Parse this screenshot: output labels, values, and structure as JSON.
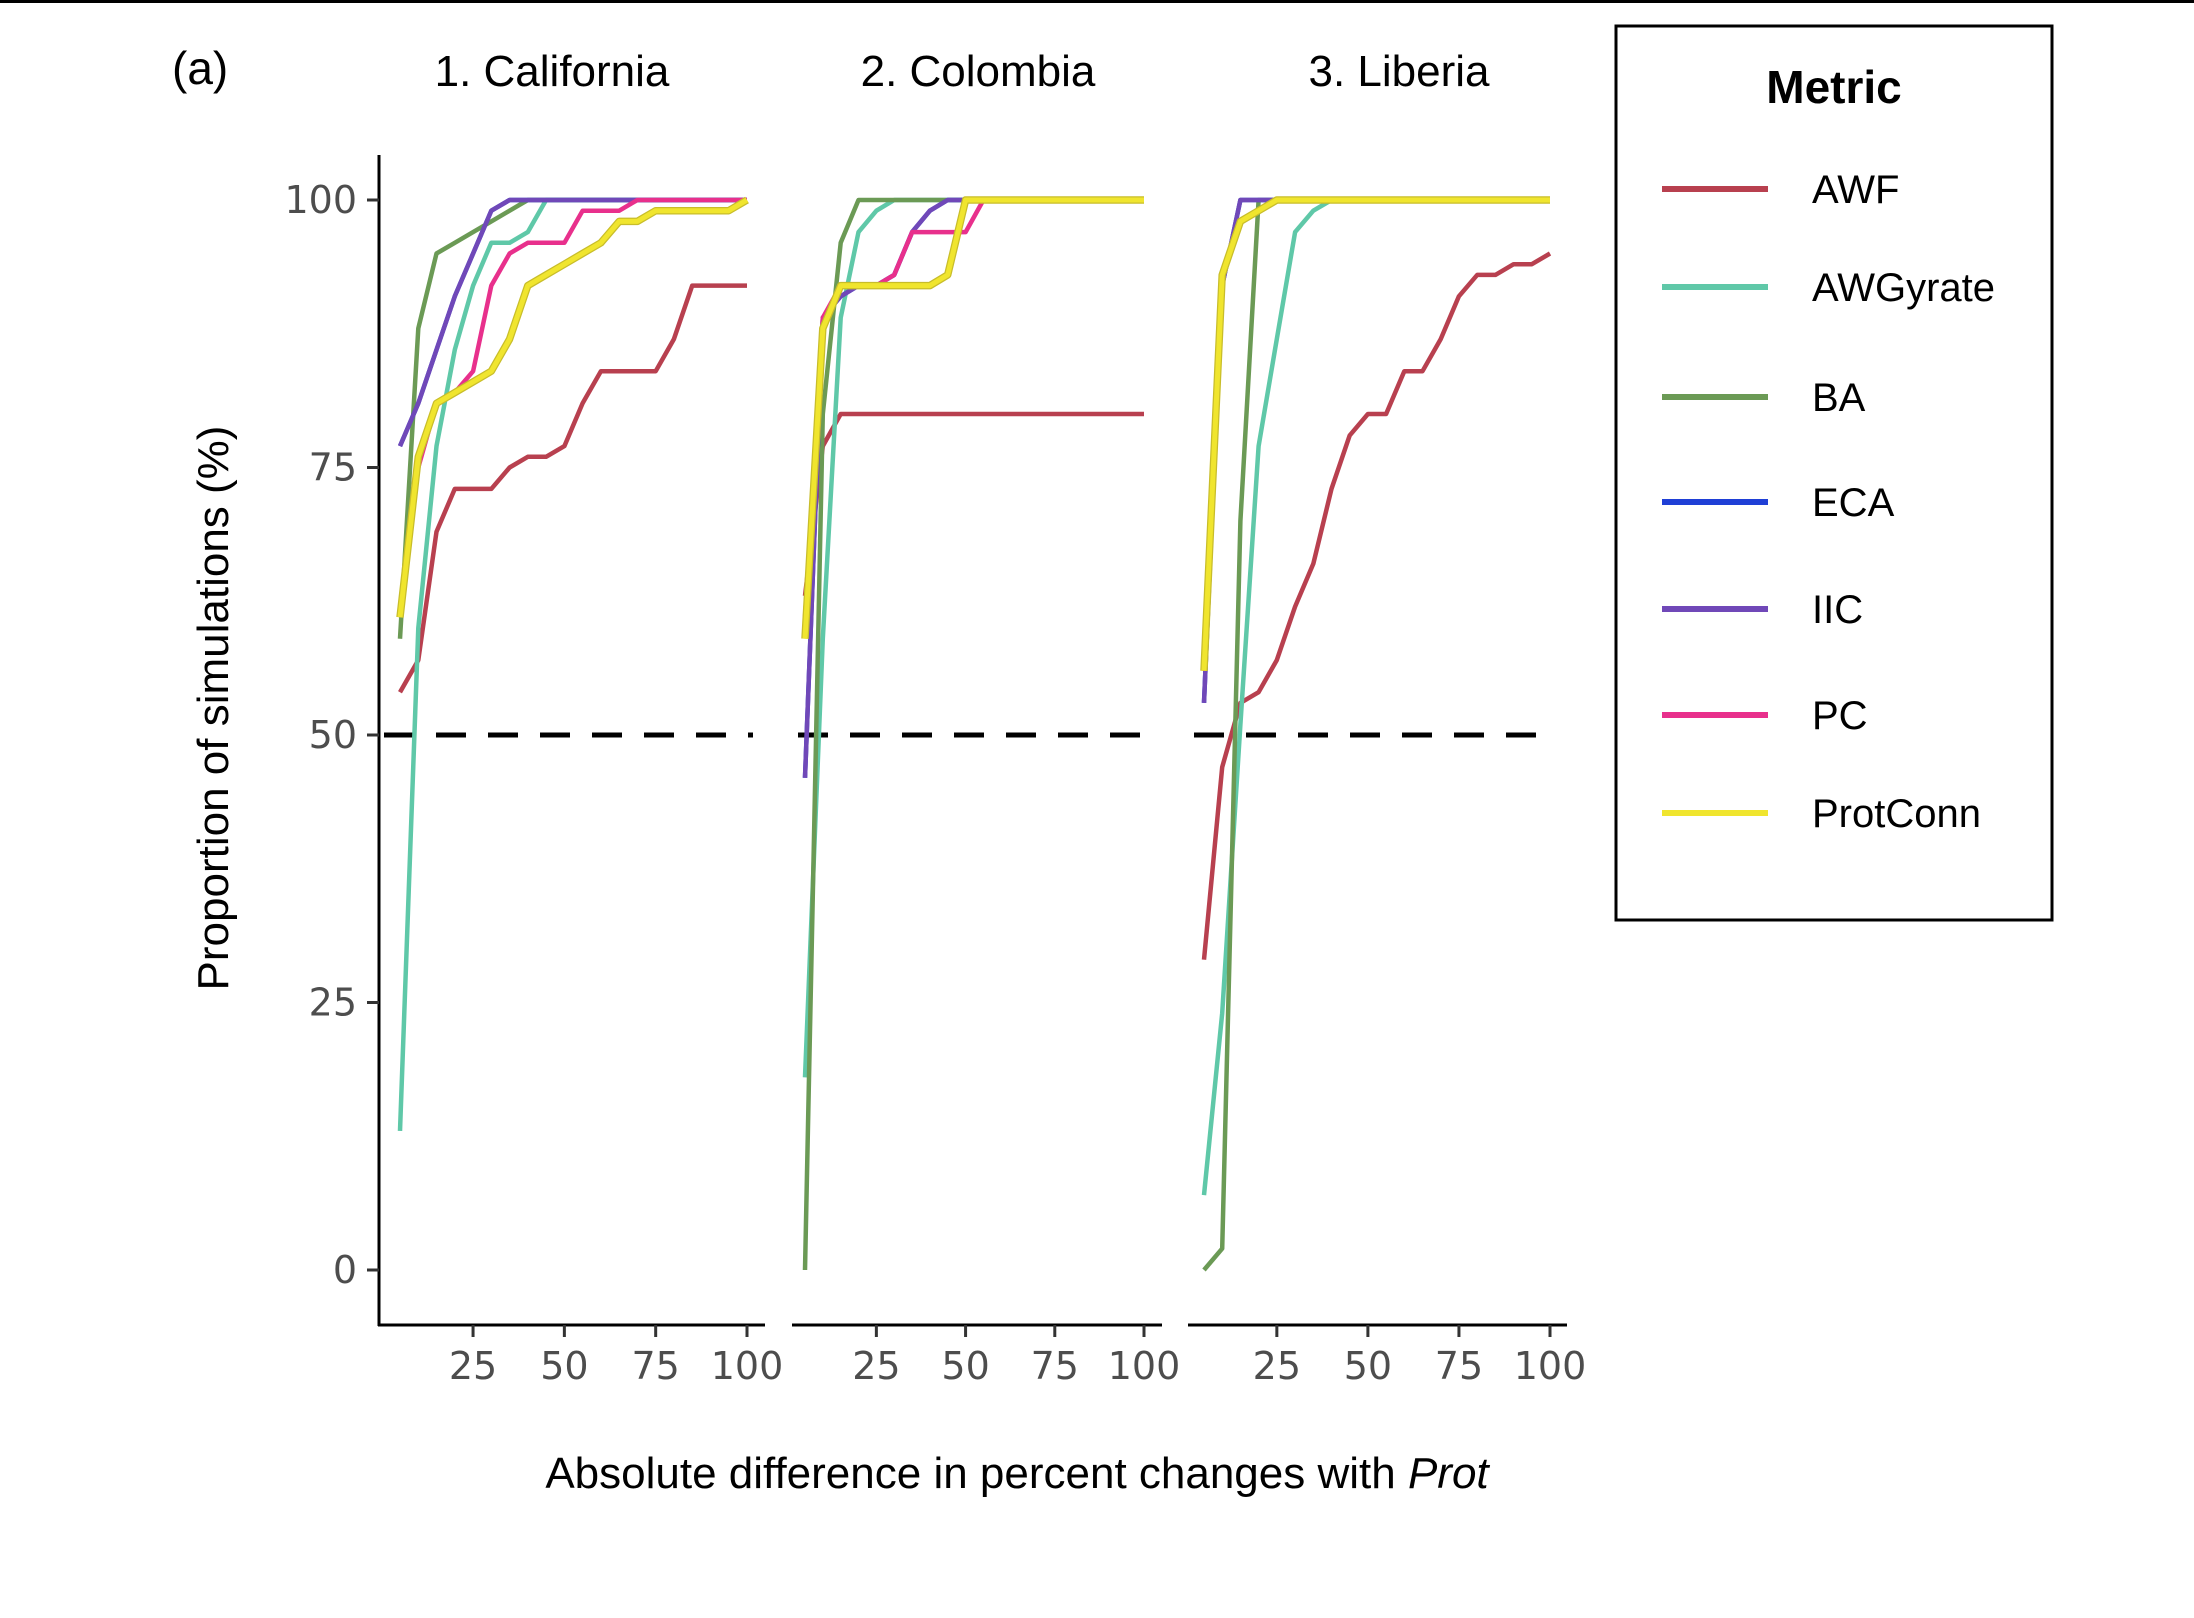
{
  "panel_label": "(a)",
  "x_label_main": "Absolute difference in percent changes with ",
  "x_label_italic": "Prot",
  "y_label": "Proportion of simulations (%)",
  "legend": {
    "title": "Metric",
    "entries": [
      {
        "name": "AWF",
        "color": "#b8404f"
      },
      {
        "name": "AWGyrate",
        "color": "#5fc8a8"
      },
      {
        "name": "BA",
        "color": "#6b9a55"
      },
      {
        "name": "ECA",
        "color": "#1f3fd6"
      },
      {
        "name": "IIC",
        "color": "#7048b8"
      },
      {
        "name": "PC",
        "color": "#e8308c"
      },
      {
        "name": "ProtConn",
        "color": "#f0e52e"
      }
    ]
  },
  "chart_data": {
    "type": "line",
    "facets": [
      "1. California",
      "2. Colombia",
      "3. Liberia"
    ],
    "xlabel": "Absolute difference in percent changes with Prot",
    "ylabel": "Proportion of simulations (%)",
    "ylim": [
      0,
      100
    ],
    "yticks": [
      0,
      25,
      50,
      75,
      100
    ],
    "xticks": [
      25,
      50,
      75,
      100
    ],
    "xlim": [
      0,
      101
    ],
    "reference_line": {
      "y": 50,
      "style": "dashed",
      "color": "#000000"
    },
    "grid": false,
    "legend_position": "right",
    "series_order": [
      "AWF",
      "AWGyrate",
      "BA",
      "ECA",
      "IIC",
      "PC",
      "ProtConn"
    ],
    "panels": [
      {
        "facet": "1. California",
        "series": [
          {
            "name": "AWF",
            "x": [
              5,
              10,
              15,
              20,
              25,
              30,
              35,
              40,
              45,
              50,
              55,
              60,
              65,
              70,
              75,
              80,
              85,
              90,
              95,
              100
            ],
            "y": [
              54,
              57,
              69,
              73,
              73,
              73,
              75,
              76,
              76,
              77,
              81,
              84,
              84,
              84,
              84,
              87,
              92,
              92,
              92,
              92
            ]
          },
          {
            "name": "AWGyrate",
            "x": [
              5,
              10,
              15,
              20,
              25,
              30,
              35,
              40,
              45,
              50,
              60,
              70,
              80,
              90,
              100
            ],
            "y": [
              13,
              60,
              77,
              86,
              92,
              96,
              96,
              97,
              100,
              100,
              100,
              100,
              100,
              100,
              100
            ]
          },
          {
            "name": "BA",
            "x": [
              5,
              10,
              15,
              20,
              25,
              30,
              35,
              40,
              50,
              60,
              70,
              80,
              90,
              100
            ],
            "y": [
              59,
              88,
              95,
              96,
              97,
              98,
              99,
              100,
              100,
              100,
              100,
              100,
              100,
              100
            ]
          },
          {
            "name": "ECA",
            "x": [
              5,
              10,
              15,
              20,
              25,
              30,
              35,
              40,
              50,
              60,
              70,
              80,
              90,
              100
            ],
            "y": [
              77,
              81,
              86,
              91,
              95,
              99,
              100,
              100,
              100,
              100,
              100,
              100,
              100,
              100
            ]
          },
          {
            "name": "IIC",
            "x": [
              5,
              10,
              15,
              20,
              25,
              30,
              35,
              40,
              50,
              60,
              70,
              80,
              90,
              100
            ],
            "y": [
              77,
              81,
              86,
              91,
              95,
              99,
              100,
              100,
              100,
              100,
              100,
              100,
              100,
              100
            ]
          },
          {
            "name": "PC",
            "x": [
              5,
              10,
              15,
              20,
              25,
              30,
              35,
              40,
              45,
              50,
              55,
              60,
              65,
              70,
              75,
              80,
              90,
              100
            ],
            "y": [
              61,
              75,
              81,
              82,
              84,
              92,
              95,
              96,
              96,
              96,
              99,
              99,
              99,
              100,
              100,
              100,
              100,
              100
            ]
          },
          {
            "name": "ProtConn",
            "x": [
              5,
              10,
              15,
              20,
              25,
              30,
              35,
              40,
              45,
              50,
              55,
              60,
              65,
              70,
              75,
              80,
              85,
              90,
              95,
              100
            ],
            "y": [
              61,
              76,
              81,
              82,
              83,
              84,
              87,
              92,
              93,
              94,
              95,
              96,
              98,
              98,
              99,
              99,
              99,
              99,
              99,
              100
            ]
          }
        ]
      },
      {
        "facet": "2. Colombia",
        "series": [
          {
            "name": "AWF",
            "x": [
              5,
              10,
              15,
              20,
              25,
              50,
              75,
              100
            ],
            "y": [
              63,
              77,
              80,
              80,
              80,
              80,
              80,
              80
            ]
          },
          {
            "name": "AWGyrate",
            "x": [
              5,
              10,
              15,
              20,
              25,
              30,
              35,
              40,
              50,
              75,
              100
            ],
            "y": [
              18,
              59,
              89,
              97,
              99,
              100,
              100,
              100,
              100,
              100,
              100
            ]
          },
          {
            "name": "BA",
            "x": [
              5,
              10,
              15,
              20,
              25,
              50,
              75,
              100
            ],
            "y": [
              0,
              80,
              96,
              100,
              100,
              100,
              100,
              100
            ]
          },
          {
            "name": "ECA",
            "x": [
              5,
              10,
              15,
              20,
              25,
              30,
              35,
              40,
              45,
              50,
              75,
              100
            ],
            "y": [
              46,
              89,
              91,
              92,
              92,
              93,
              97,
              99,
              100,
              100,
              100,
              100
            ]
          },
          {
            "name": "IIC",
            "x": [
              5,
              10,
              15,
              20,
              25,
              30,
              35,
              40,
              45,
              50,
              75,
              100
            ],
            "y": [
              46,
              89,
              91,
              92,
              92,
              93,
              97,
              99,
              100,
              100,
              100,
              100
            ]
          },
          {
            "name": "PC",
            "x": [
              5,
              10,
              15,
              20,
              25,
              30,
              35,
              40,
              45,
              50,
              55,
              75,
              100
            ],
            "y": [
              61,
              89,
              92,
              92,
              92,
              93,
              97,
              97,
              97,
              97,
              100,
              100,
              100
            ]
          },
          {
            "name": "ProtConn",
            "x": [
              5,
              10,
              15,
              20,
              25,
              30,
              35,
              40,
              45,
              50,
              75,
              100
            ],
            "y": [
              59,
              88,
              92,
              92,
              92,
              92,
              92,
              92,
              93,
              100,
              100,
              100
            ]
          }
        ]
      },
      {
        "facet": "3. Liberia",
        "series": [
          {
            "name": "AWF",
            "x": [
              5,
              10,
              15,
              20,
              25,
              30,
              35,
              40,
              45,
              50,
              55,
              60,
              65,
              70,
              75,
              80,
              85,
              90,
              95,
              100
            ],
            "y": [
              29,
              47,
              53,
              54,
              57,
              62,
              66,
              73,
              78,
              80,
              80,
              84,
              84,
              87,
              91,
              93,
              93,
              94,
              94,
              95
            ]
          },
          {
            "name": "AWGyrate",
            "x": [
              5,
              10,
              15,
              20,
              25,
              30,
              35,
              40,
              50,
              75,
              100
            ],
            "y": [
              7,
              24,
              51,
              77,
              87,
              97,
              99,
              100,
              100,
              100,
              100
            ]
          },
          {
            "name": "BA",
            "x": [
              5,
              10,
              15,
              20,
              25,
              50,
              75,
              100
            ],
            "y": [
              0,
              2,
              70,
              100,
              100,
              100,
              100,
              100
            ]
          },
          {
            "name": "ECA",
            "x": [
              5,
              10,
              15,
              20,
              25,
              50,
              75,
              100
            ],
            "y": [
              53,
              92,
              100,
              100,
              100,
              100,
              100,
              100
            ]
          },
          {
            "name": "IIC",
            "x": [
              5,
              10,
              15,
              20,
              25,
              50,
              75,
              100
            ],
            "y": [
              53,
              92,
              100,
              100,
              100,
              100,
              100,
              100
            ]
          },
          {
            "name": "PC",
            "x": [
              5,
              10,
              15,
              20,
              25,
              50,
              75,
              100
            ],
            "y": [
              56,
              93,
              98,
              99,
              100,
              100,
              100,
              100
            ]
          },
          {
            "name": "ProtConn",
            "x": [
              5,
              10,
              15,
              20,
              25,
              50,
              75,
              100
            ],
            "y": [
              56,
              93,
              98,
              99,
              100,
              100,
              100,
              100
            ]
          }
        ]
      }
    ]
  }
}
